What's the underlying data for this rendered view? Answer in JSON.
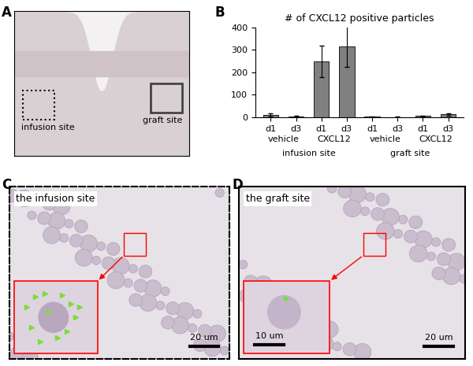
{
  "panel_labels": [
    "A",
    "B",
    "C",
    "D"
  ],
  "panel_a": {
    "regions": [
      "infusion site",
      "graft site"
    ]
  },
  "chart_data": {
    "type": "bar",
    "title": "# of CXCL12 positive particles",
    "categories": [
      "d1",
      "d3",
      "d1",
      "d3",
      "d1",
      "d3",
      "d1",
      "d3"
    ],
    "values": [
      10,
      3,
      250,
      315,
      2,
      1,
      5,
      13
    ],
    "error": [
      6,
      2,
      70,
      90,
      1,
      1,
      2,
      5
    ],
    "groups": [
      "vehicle",
      "CXCL12",
      "vehicle",
      "CXCL12"
    ],
    "sites": [
      "infusion site",
      "graft site"
    ],
    "color": "#808080",
    "ylim": [
      0,
      400
    ],
    "yticks": [
      0,
      100,
      200,
      300,
      400
    ]
  },
  "panel_c": {
    "label": "the infusion site",
    "scale_bar": "20 um"
  },
  "panel_d": {
    "label": "the graft site",
    "inset_scale_bar": "10 um",
    "scale_bar": "20 um"
  }
}
